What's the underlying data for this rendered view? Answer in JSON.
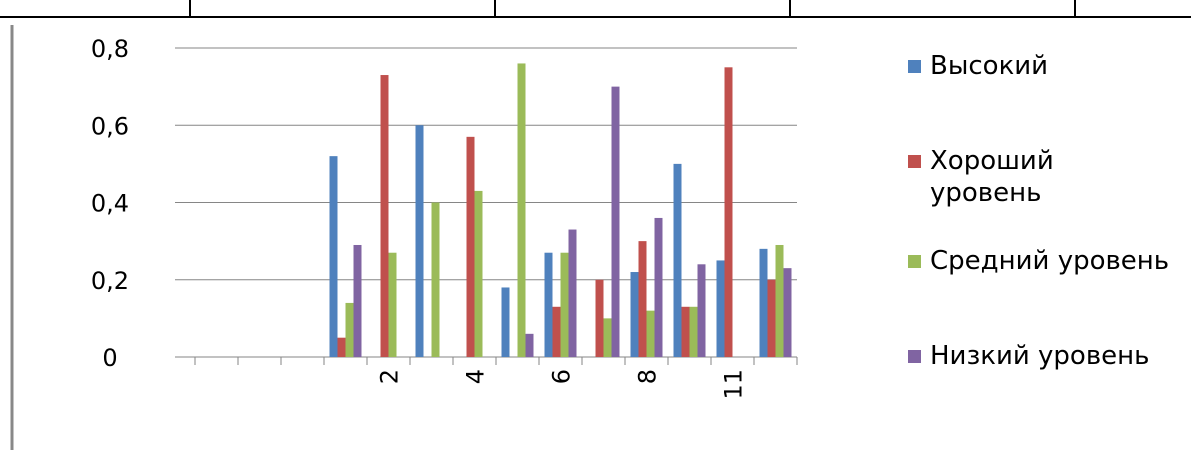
{
  "chart_data": {
    "type": "bar",
    "categories": [
      null,
      null,
      null,
      null,
      "2",
      null,
      "4",
      null,
      "6",
      null,
      "8",
      null,
      "11",
      null
    ],
    "series": [
      {
        "name": "Высокий",
        "color": "#4f81bd",
        "values": [
          null,
          null,
          null,
          0.52,
          null,
          0.6,
          null,
          0.18,
          0.27,
          null,
          0.22,
          0.5,
          0.25,
          0.28
        ]
      },
      {
        "name": "Хороший уровень",
        "color": "#c0504d",
        "values": [
          null,
          null,
          null,
          0.05,
          0.73,
          null,
          0.57,
          null,
          0.13,
          0.2,
          0.3,
          0.13,
          0.75,
          0.2
        ]
      },
      {
        "name": "Средний уровень",
        "color": "#9bbb59",
        "values": [
          null,
          null,
          null,
          0.14,
          0.27,
          0.4,
          0.43,
          0.76,
          0.27,
          0.1,
          0.12,
          0.13,
          null,
          0.29
        ]
      },
      {
        "name": "Низкий уровень",
        "color": "#8064a2",
        "values": [
          null,
          null,
          null,
          0.29,
          null,
          null,
          null,
          0.06,
          0.33,
          0.7,
          0.36,
          0.24,
          null,
          0.23
        ]
      }
    ],
    "ylim": [
      0,
      0.8
    ],
    "yticks": [
      0,
      {
        "value": 0.2,
        "label": "0,2"
      },
      {
        "value": 0.4,
        "label": "0,4"
      },
      {
        "value": 0.6,
        "label": "0,6"
      },
      {
        "value": 0.8,
        "label": "0,8"
      }
    ],
    "grid": true,
    "legend": "right"
  }
}
